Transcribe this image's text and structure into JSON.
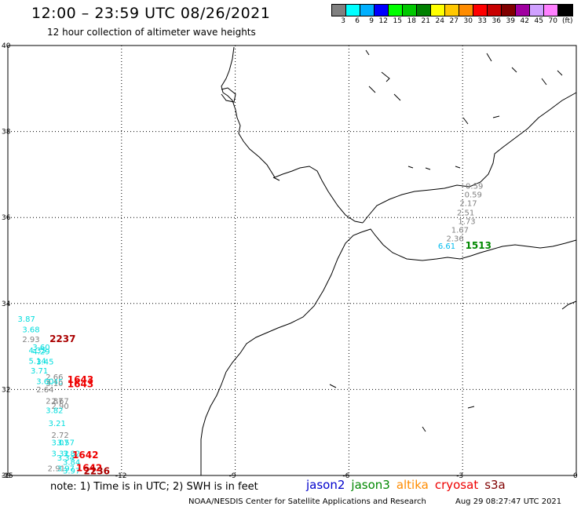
{
  "header": {
    "title": "12:00 – 23:59 UTC 08/26/2021",
    "subtitle": "12 hour collection of altimeter wave heights"
  },
  "color_scale": {
    "unit": "(ft)",
    "bins": [
      {
        "label": "3",
        "color": "#808080"
      },
      {
        "label": "6",
        "color": "#00ffff"
      },
      {
        "label": "9",
        "color": "#00b0ff"
      },
      {
        "label": "12",
        "color": "#0000ff"
      },
      {
        "label": "15",
        "color": "#00ff00"
      },
      {
        "label": "18",
        "color": "#00c800"
      },
      {
        "label": "21",
        "color": "#008000"
      },
      {
        "label": "24",
        "color": "#ffff00"
      },
      {
        "label": "27",
        "color": "#ffc800"
      },
      {
        "label": "30",
        "color": "#ff8c00"
      },
      {
        "label": "33",
        "color": "#ff0000"
      },
      {
        "label": "36",
        "color": "#c80000"
      },
      {
        "label": "39",
        "color": "#800000"
      },
      {
        "label": "42",
        "color": "#a000a0"
      },
      {
        "label": "45",
        "color": "#d0a0ff"
      },
      {
        "label": "70",
        "color": "#ff80ff"
      },
      {
        "label": "",
        "color": "#000000"
      }
    ]
  },
  "axes": {
    "lat_labels": [
      "40",
      "38",
      "36",
      "34",
      "32",
      "30"
    ],
    "lon_labels": [
      "-15",
      "-12",
      "-9",
      "-6",
      "-3",
      "0"
    ]
  },
  "observations": [
    {
      "value": "3.87",
      "lon": -14.74,
      "lat": 33.58,
      "color": "#00dddd"
    },
    {
      "value": "3.68",
      "lon": -14.62,
      "lat": 33.33,
      "color": "#00dddd"
    },
    {
      "value": "2.93",
      "lon": -14.62,
      "lat": 33.1,
      "color": "#808080"
    },
    {
      "value": "2237",
      "lon": -13.9,
      "lat": 33.1,
      "color": "#aa0000",
      "orbit": true
    },
    {
      "value": "3.60",
      "lon": -14.35,
      "lat": 32.92,
      "color": "#00dddd"
    },
    {
      "value": "4.35",
      "lon": -14.45,
      "lat": 32.85,
      "color": "#00dddd"
    },
    {
      "value": "4.29",
      "lon": -14.35,
      "lat": 32.82,
      "color": "#00dddd"
    },
    {
      "value": "5.14",
      "lon": -14.45,
      "lat": 32.6,
      "color": "#00dddd"
    },
    {
      "value": "3.45",
      "lon": -14.25,
      "lat": 32.58,
      "color": "#00dddd"
    },
    {
      "value": "3.71",
      "lon": -14.4,
      "lat": 32.37,
      "color": "#00dddd"
    },
    {
      "value": "2.66",
      "lon": -14.0,
      "lat": 32.23,
      "color": "#808080"
    },
    {
      "value": "3.60",
      "lon": -14.25,
      "lat": 32.13,
      "color": "#00dddd"
    },
    {
      "value": "3.45",
      "lon": -14.0,
      "lat": 32.12,
      "color": "#00dddd"
    },
    {
      "value": "3.10",
      "lon": -14.0,
      "lat": 32.08,
      "color": "#808080"
    },
    {
      "value": "1643",
      "lon": -13.43,
      "lat": 32.15,
      "color": "#ee0000",
      "orbit": true
    },
    {
      "value": "1643",
      "lon": -13.43,
      "lat": 32.05,
      "color": "#ee0000",
      "orbit": true
    },
    {
      "value": "2.64",
      "lon": -14.25,
      "lat": 31.93,
      "color": "#808080"
    },
    {
      "value": "2.87",
      "lon": -14.0,
      "lat": 31.67,
      "color": "#808080"
    },
    {
      "value": "2.67",
      "lon": -13.85,
      "lat": 31.67,
      "color": "#808080"
    },
    {
      "value": "2.90",
      "lon": -13.85,
      "lat": 31.55,
      "color": "#808080"
    },
    {
      "value": "3.82",
      "lon": -14.0,
      "lat": 31.45,
      "color": "#00dddd"
    },
    {
      "value": "3.21",
      "lon": -13.93,
      "lat": 31.15,
      "color": "#00dddd"
    },
    {
      "value": "2.72",
      "lon": -13.85,
      "lat": 30.88,
      "color": "#808080"
    },
    {
      "value": "3.07",
      "lon": -13.85,
      "lat": 30.7,
      "color": "#00dddd"
    },
    {
      "value": "3.57",
      "lon": -13.7,
      "lat": 30.7,
      "color": "#00dddd"
    },
    {
      "value": "3.32",
      "lon": -13.85,
      "lat": 30.45,
      "color": "#00dddd"
    },
    {
      "value": "3.82",
      "lon": -13.55,
      "lat": 30.45,
      "color": "#00dddd"
    },
    {
      "value": "3.34",
      "lon": -13.7,
      "lat": 30.35,
      "color": "#00dddd"
    },
    {
      "value": "1642",
      "lon": -13.3,
      "lat": 30.4,
      "color": "#ee0000",
      "orbit": true
    },
    {
      "value": "3.84",
      "lon": -13.55,
      "lat": 30.25,
      "color": "#00dddd"
    },
    {
      "value": "2.91",
      "lon": -13.95,
      "lat": 30.1,
      "color": "#808080"
    },
    {
      "value": "3.97",
      "lon": -13.7,
      "lat": 30.1,
      "color": "#00dddd"
    },
    {
      "value": "3.97",
      "lon": -13.55,
      "lat": 30.05,
      "color": "#00dddd"
    },
    {
      "value": "1642",
      "lon": -13.2,
      "lat": 30.1,
      "color": "#ee0000",
      "orbit": true
    },
    {
      "value": "2236",
      "lon": -13.0,
      "lat": 30.03,
      "color": "#aa0000",
      "orbit": true
    },
    {
      "value": "0.59",
      "lon": -2.92,
      "lat": 36.67,
      "color": "#808080"
    },
    {
      "value": "0.59",
      "lon": -2.95,
      "lat": 36.47,
      "color": "#808080"
    },
    {
      "value": "2.17",
      "lon": -3.08,
      "lat": 36.27,
      "color": "#808080"
    },
    {
      "value": "2.51",
      "lon": -3.15,
      "lat": 36.05,
      "color": "#808080"
    },
    {
      "value": "1.73",
      "lon": -3.12,
      "lat": 35.85,
      "color": "#808080"
    },
    {
      "value": "1.67",
      "lon": -3.3,
      "lat": 35.65,
      "color": "#808080"
    },
    {
      "value": "2.36",
      "lon": -3.43,
      "lat": 35.45,
      "color": "#808080"
    },
    {
      "value": "6.61",
      "lon": -3.65,
      "lat": 35.27,
      "color": "#00bbee"
    },
    {
      "value": "1513",
      "lon": -2.93,
      "lat": 35.27,
      "color": "#008800",
      "orbit": true
    }
  ],
  "legend": {
    "items": [
      {
        "label": "jason2",
        "color": "#0000cc"
      },
      {
        "label": "jason3",
        "color": "#008800"
      },
      {
        "label": "altika",
        "color": "#ff8c00"
      },
      {
        "label": "cryosat",
        "color": "#ee0000"
      },
      {
        "label": "s3a",
        "color": "#800000"
      }
    ]
  },
  "footer": {
    "note": "note: 1) Time is in UTC; 2) SWH is in feet",
    "credit": "NOAA/NESDIS Center for Satellite Applications and Research",
    "timestamp": "Aug 29 08:27:47 UTC 2021"
  }
}
